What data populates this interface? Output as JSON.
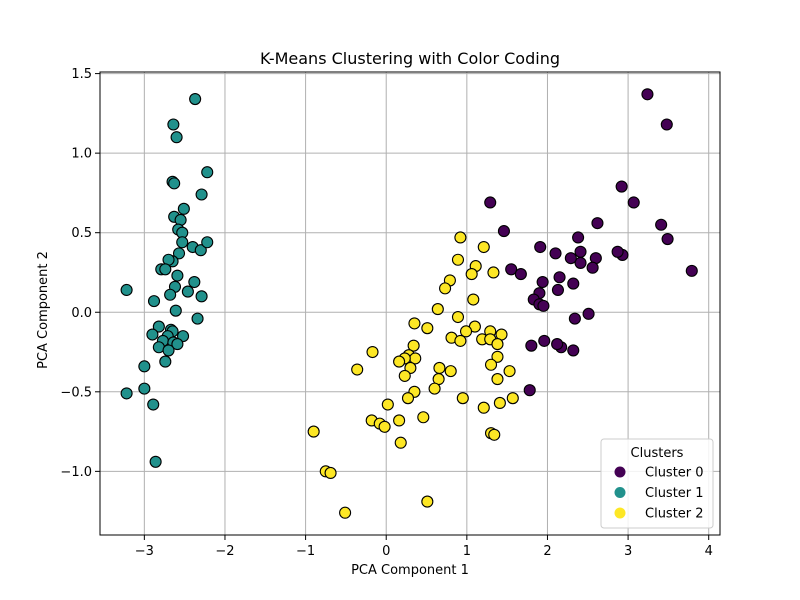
{
  "chart_data": {
    "type": "scatter",
    "title": "K-Means Clustering with Color Coding",
    "xlabel": "PCA Component 1",
    "ylabel": "PCA Component 2",
    "xlim": [
      -3.55,
      4.14
    ],
    "ylim": [
      -1.4,
      1.51
    ],
    "xticks": [
      -3,
      -2,
      -1,
      0,
      1,
      2,
      3,
      4
    ],
    "xtick_labels": [
      "−3",
      "−2",
      "−1",
      "0",
      "1",
      "2",
      "3",
      "4"
    ],
    "yticks": [
      -1.0,
      -0.5,
      0.0,
      0.5,
      1.0,
      1.5
    ],
    "ytick_labels": [
      "−1.0",
      "−0.5",
      "0.0",
      "0.5",
      "1.0",
      "1.5"
    ],
    "grid": true,
    "legend": {
      "title": "Clusters",
      "position": "lower-right"
    },
    "series": [
      {
        "name": "Cluster 0",
        "color": "#440154",
        "points": [
          [
            3.24,
            1.37
          ],
          [
            3.48,
            1.18
          ],
          [
            2.92,
            0.79
          ],
          [
            3.07,
            0.69
          ],
          [
            3.41,
            0.55
          ],
          [
            3.49,
            0.46
          ],
          [
            3.79,
            0.26
          ],
          [
            2.93,
            0.36
          ],
          [
            2.87,
            0.38
          ],
          [
            2.62,
            0.56
          ],
          [
            2.6,
            0.34
          ],
          [
            2.56,
            0.28
          ],
          [
            2.51,
            -0.01
          ],
          [
            2.38,
            0.47
          ],
          [
            2.41,
            0.38
          ],
          [
            2.41,
            0.31
          ],
          [
            2.29,
            0.34
          ],
          [
            2.32,
            0.18
          ],
          [
            2.15,
            0.22
          ],
          [
            2.1,
            0.37
          ],
          [
            2.13,
            0.14
          ],
          [
            1.91,
            0.41
          ],
          [
            1.94,
            0.19
          ],
          [
            1.9,
            0.12
          ],
          [
            1.83,
            0.08
          ],
          [
            1.9,
            0.05
          ],
          [
            1.95,
            0.04
          ],
          [
            1.46,
            0.51
          ],
          [
            1.29,
            0.69
          ],
          [
            1.55,
            0.27
          ],
          [
            1.67,
            0.24
          ],
          [
            2.34,
            -0.04
          ],
          [
            2.32,
            -0.24
          ],
          [
            2.17,
            -0.22
          ],
          [
            2.12,
            -0.2
          ],
          [
            1.96,
            -0.18
          ],
          [
            1.8,
            -0.21
          ],
          [
            1.78,
            -0.49
          ]
        ]
      },
      {
        "name": "Cluster 1",
        "color": "#21918c",
        "points": [
          [
            -2.37,
            1.34
          ],
          [
            -2.64,
            1.18
          ],
          [
            -2.6,
            1.1
          ],
          [
            -2.22,
            0.88
          ],
          [
            -2.65,
            0.82
          ],
          [
            -2.63,
            0.81
          ],
          [
            -2.29,
            0.74
          ],
          [
            -2.51,
            0.65
          ],
          [
            -2.63,
            0.6
          ],
          [
            -2.55,
            0.58
          ],
          [
            -2.58,
            0.52
          ],
          [
            -2.53,
            0.5
          ],
          [
            -2.53,
            0.44
          ],
          [
            -2.4,
            0.41
          ],
          [
            -2.3,
            0.39
          ],
          [
            -2.22,
            0.44
          ],
          [
            -2.57,
            0.37
          ],
          [
            -2.65,
            0.32
          ],
          [
            -2.7,
            0.33
          ],
          [
            -2.79,
            0.27
          ],
          [
            -2.74,
            0.27
          ],
          [
            -2.59,
            0.23
          ],
          [
            -2.38,
            0.19
          ],
          [
            -2.62,
            0.16
          ],
          [
            -2.46,
            0.13
          ],
          [
            -2.68,
            0.11
          ],
          [
            -2.29,
            0.1
          ],
          [
            -2.88,
            0.07
          ],
          [
            -3.22,
            0.14
          ],
          [
            -2.61,
            0.01
          ],
          [
            -2.34,
            -0.04
          ],
          [
            -2.82,
            -0.09
          ],
          [
            -2.67,
            -0.11
          ],
          [
            -2.65,
            -0.12
          ],
          [
            -2.9,
            -0.14
          ],
          [
            -2.71,
            -0.15
          ],
          [
            -2.52,
            -0.15
          ],
          [
            -2.77,
            -0.18
          ],
          [
            -2.64,
            -0.19
          ],
          [
            -2.59,
            -0.2
          ],
          [
            -2.82,
            -0.22
          ],
          [
            -2.7,
            -0.24
          ],
          [
            -2.74,
            -0.31
          ],
          [
            -3.0,
            -0.34
          ],
          [
            -3.0,
            -0.48
          ],
          [
            -3.22,
            -0.51
          ],
          [
            -2.89,
            -0.58
          ],
          [
            -2.86,
            -0.94
          ]
        ]
      },
      {
        "name": "Cluster 2",
        "color": "#fde725",
        "points": [
          [
            0.92,
            0.47
          ],
          [
            1.21,
            0.41
          ],
          [
            0.89,
            0.33
          ],
          [
            1.11,
            0.29
          ],
          [
            1.33,
            0.25
          ],
          [
            1.06,
            0.24
          ],
          [
            0.79,
            0.2
          ],
          [
            0.73,
            0.15
          ],
          [
            1.08,
            0.08
          ],
          [
            0.64,
            0.02
          ],
          [
            0.89,
            -0.03
          ],
          [
            0.35,
            -0.07
          ],
          [
            0.51,
            -0.1
          ],
          [
            1.1,
            -0.09
          ],
          [
            0.99,
            -0.12
          ],
          [
            1.29,
            -0.12
          ],
          [
            0.81,
            -0.16
          ],
          [
            0.92,
            -0.18
          ],
          [
            1.19,
            -0.17
          ],
          [
            1.29,
            -0.17
          ],
          [
            1.43,
            -0.14
          ],
          [
            1.38,
            -0.2
          ],
          [
            0.34,
            -0.21
          ],
          [
            0.28,
            -0.27
          ],
          [
            0.36,
            -0.29
          ],
          [
            0.23,
            -0.29
          ],
          [
            -0.17,
            -0.25
          ],
          [
            0.16,
            -0.31
          ],
          [
            1.38,
            -0.28
          ],
          [
            1.3,
            -0.33
          ],
          [
            0.3,
            -0.35
          ],
          [
            0.23,
            -0.4
          ],
          [
            -0.36,
            -0.36
          ],
          [
            0.66,
            -0.35
          ],
          [
            0.65,
            -0.42
          ],
          [
            0.8,
            -0.37
          ],
          [
            1.53,
            -0.37
          ],
          [
            1.38,
            -0.42
          ],
          [
            0.6,
            -0.48
          ],
          [
            0.35,
            -0.5
          ],
          [
            0.95,
            -0.54
          ],
          [
            0.27,
            -0.54
          ],
          [
            1.57,
            -0.54
          ],
          [
            1.41,
            -0.57
          ],
          [
            1.21,
            -0.6
          ],
          [
            0.46,
            -0.66
          ],
          [
            -0.18,
            -0.68
          ],
          [
            0.16,
            -0.68
          ],
          [
            -0.08,
            -0.7
          ],
          [
            -0.02,
            -0.72
          ],
          [
            0.02,
            -0.58
          ],
          [
            1.3,
            -0.76
          ],
          [
            1.34,
            -0.77
          ],
          [
            -0.9,
            -0.75
          ],
          [
            0.18,
            -0.82
          ],
          [
            -0.75,
            -1.0
          ],
          [
            -0.69,
            -1.01
          ],
          [
            0.51,
            -1.19
          ],
          [
            -0.51,
            -1.26
          ]
        ]
      }
    ]
  }
}
